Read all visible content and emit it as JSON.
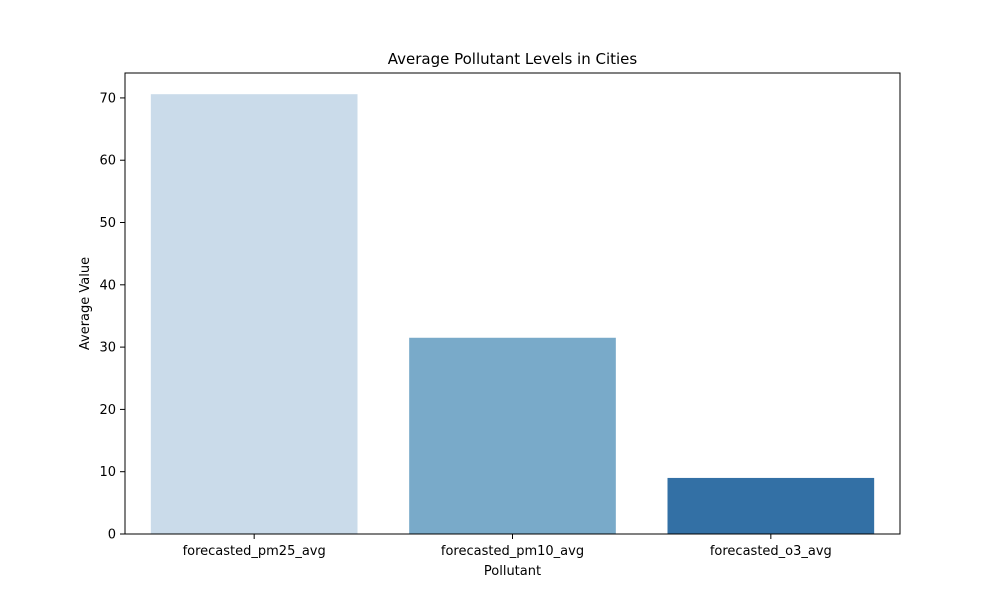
{
  "chart_data": {
    "type": "bar",
    "title": "Average Pollutant Levels in Cities",
    "xlabel": "Pollutant",
    "ylabel": "Average Value",
    "categories": [
      "forecasted_pm25_avg",
      "forecasted_pm10_avg",
      "forecasted_o3_avg"
    ],
    "values": [
      70.6,
      31.5,
      9.0
    ],
    "colors": [
      "#cadbea",
      "#79aac9",
      "#3370a5"
    ],
    "ylim": [
      0,
      74
    ],
    "yticks": [
      0,
      10,
      20,
      30,
      40,
      50,
      60,
      70
    ],
    "grid": false,
    "legend": "none"
  }
}
